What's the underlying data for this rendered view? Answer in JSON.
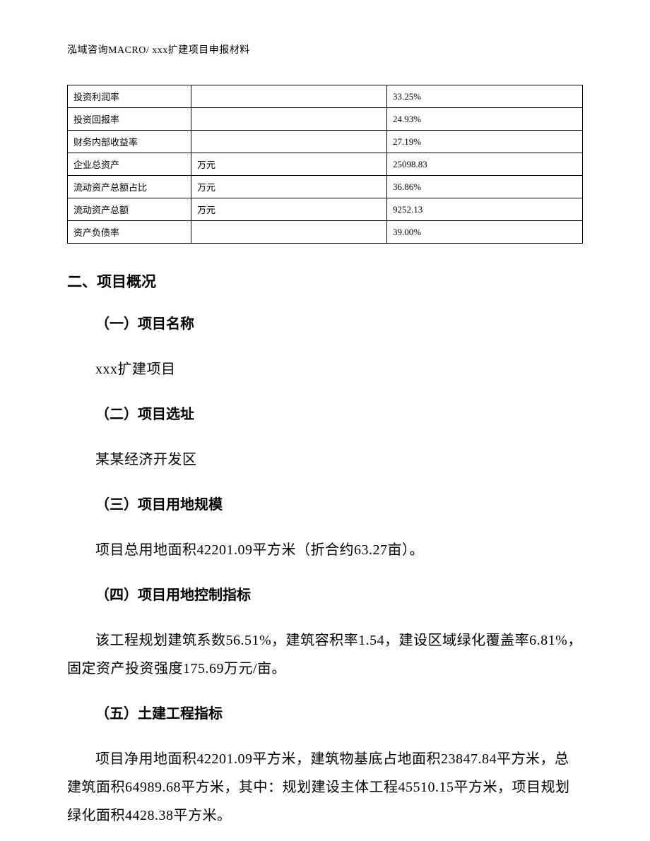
{
  "header": {
    "text": "泓域咨询MACRO/   xxx扩建项目申报材料"
  },
  "table": {
    "rows": [
      {
        "label": "投资利润率",
        "unit": "",
        "value": "33.25%"
      },
      {
        "label": "投资回报率",
        "unit": "",
        "value": "24.93%"
      },
      {
        "label": "财务内部收益率",
        "unit": "",
        "value": "27.19%"
      },
      {
        "label": "企业总资产",
        "unit": "万元",
        "value": "25098.83"
      },
      {
        "label": "流动资产总额占比",
        "unit": "万元",
        "value": "36.86%"
      },
      {
        "label": "流动资产总额",
        "unit": "万元",
        "value": "9252.13"
      },
      {
        "label": "资产负债率",
        "unit": "",
        "value": "39.00%"
      }
    ],
    "border_color": "#000000",
    "font_size": 13
  },
  "section": {
    "heading": "二、项目概况",
    "items": [
      {
        "sub": "（一）项目名称",
        "body": "xxx扩建项目"
      },
      {
        "sub": "（二）项目选址",
        "body": "某某经济开发区"
      },
      {
        "sub": "（三）项目用地规模",
        "body": "项目总用地面积42201.09平方米（折合约63.27亩）。"
      },
      {
        "sub": "（四）项目用地控制指标",
        "body": "该工程规划建筑系数56.51%，建筑容积率1.54，建设区域绿化覆盖率6.81%，固定资产投资强度175.69万元/亩。"
      },
      {
        "sub": "（五）土建工程指标",
        "body": "项目净用地面积42201.09平方米，建筑物基底占地面积23847.84平方米，总建筑面积64989.68平方米，其中：规划建设主体工程45510.15平方米，项目规划绿化面积4428.38平方米。"
      }
    ]
  },
  "colors": {
    "background": "#ffffff",
    "text": "#000000",
    "border": "#000000"
  },
  "typography": {
    "body_font": "SimSun",
    "heading_font": "SimHei",
    "header_fontsize": 14,
    "section_heading_fontsize": 21,
    "sub_heading_fontsize": 20,
    "body_fontsize": 20
  }
}
